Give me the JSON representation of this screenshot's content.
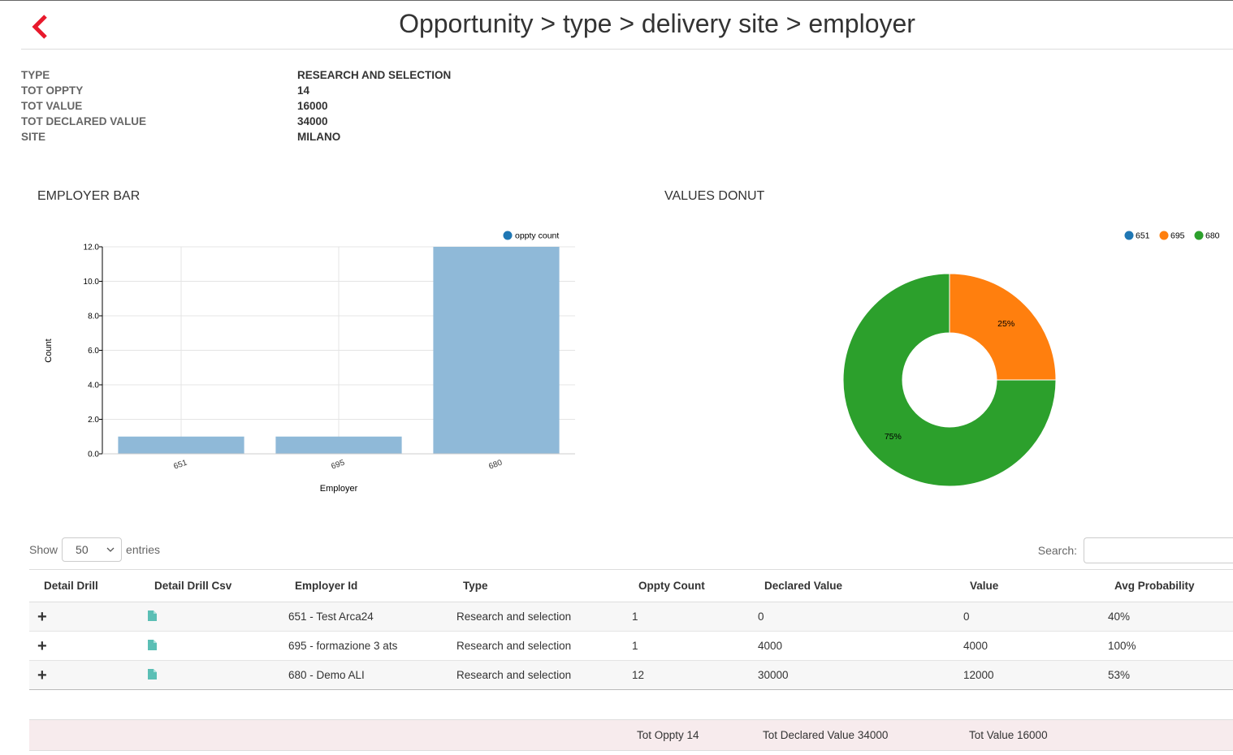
{
  "header": {
    "title": "Opportunity > type > delivery site > employer"
  },
  "summary": [
    {
      "key": "TYPE",
      "value": "RESEARCH AND SELECTION"
    },
    {
      "key": "TOT OPPTY",
      "value": "14"
    },
    {
      "key": "TOT VALUE",
      "value": "16000"
    },
    {
      "key": "TOT DECLARED VALUE",
      "value": "34000"
    },
    {
      "key": "SITE",
      "value": "MILANO"
    }
  ],
  "bar_section": {
    "title": "EMPLOYER BAR"
  },
  "donut_section": {
    "title": "VALUES DONUT"
  },
  "chart_data": [
    {
      "type": "bar",
      "categories": [
        "651",
        "695",
        "680"
      ],
      "series": [
        {
          "name": "oppty count",
          "values": [
            1,
            1,
            12
          ],
          "color": "#1f77b4"
        }
      ],
      "xlabel": "Employer",
      "ylabel": "Count",
      "ylim": [
        0,
        12
      ],
      "yticks": [
        "0.0",
        "2.0",
        "4.0",
        "6.0",
        "8.0",
        "10.0",
        "12.0"
      ],
      "grid": true,
      "legend": "top-right"
    },
    {
      "type": "pie",
      "donut": true,
      "labels": [
        "651",
        "695",
        "680"
      ],
      "values": [
        0,
        4000,
        12000
      ],
      "percent_labels": [
        "",
        "25%",
        "75%"
      ],
      "colors": [
        "#1f77b4",
        "#ff7f0e",
        "#2ca02c"
      ],
      "legend": "top-right"
    }
  ],
  "table_controls": {
    "show_label": "Show",
    "entries_value": "50",
    "entries_label": "entries",
    "search_label": "Search:",
    "search_value": ""
  },
  "table": {
    "columns": [
      "Detail Drill",
      "Detail Drill Csv",
      "Employer Id",
      "Type",
      "Oppty Count",
      "Declared Value",
      "Value",
      "Avg Probability"
    ],
    "rows": [
      {
        "employer": "651 - Test Arca24",
        "type": "Research and selection",
        "count": "1",
        "declared": "0",
        "value": "0",
        "prob": "40%"
      },
      {
        "employer": "695 - formazione 3 ats",
        "type": "Research and selection",
        "count": "1",
        "declared": "4000",
        "value": "4000",
        "prob": "100%"
      },
      {
        "employer": "680 - Demo ALI",
        "type": "Research and selection",
        "count": "12",
        "declared": "30000",
        "value": "12000",
        "prob": "53%"
      }
    ],
    "plus_glyph": "+"
  },
  "footer": {
    "tot_oppty": "Tot Oppty 14",
    "tot_declared": "Tot Declared Value 34000",
    "tot_value": "Tot Value 16000"
  },
  "colors": {
    "back_arrow": "#e8192c",
    "file_icon": "#5bbfb5",
    "bar_fill": "#8fb9d8"
  }
}
